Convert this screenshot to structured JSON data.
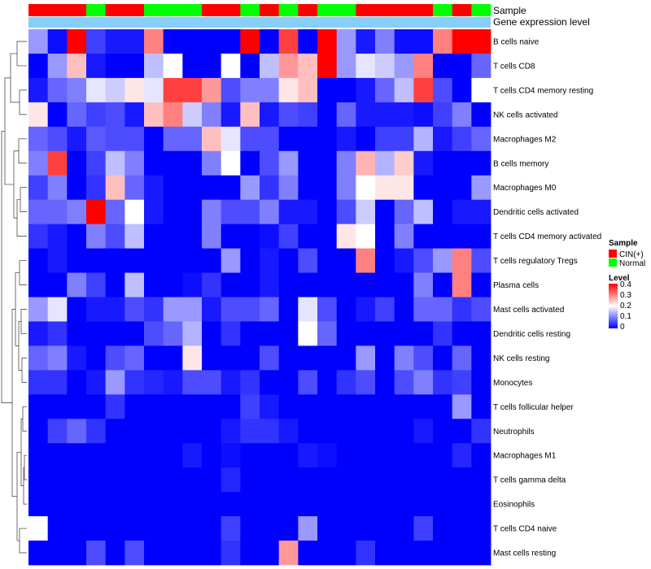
{
  "chart_data": {
    "type": "heatmap",
    "title": "",
    "rows": [
      "B cells naive",
      "T cells CD8",
      "T cells CD4 memory resting",
      "NK cells activated",
      "Macrophages M2",
      "B cells memory",
      "Macrophages M0",
      "Dendritic cells activated",
      "T cells CD4 memory activated",
      "T cells regulatory  Tregs",
      "Plasma cells",
      "Mast cells activated",
      "Dendritic cells resting",
      "NK cells resting",
      "Monocytes",
      "T cells follicular helper",
      "Neutrophils",
      "Macrophages M1",
      "T cells gamma delta",
      "Eosinophils",
      "T cells CD4 naive",
      "Mast cells resting"
    ],
    "n_columns": 24,
    "sample_groups": [
      "CIN(+)",
      "CIN(+)",
      "CIN(+)",
      "Normal",
      "CIN(+)",
      "CIN(+)",
      "Normal",
      "Normal",
      "Normal",
      "CIN(+)",
      "CIN(+)",
      "Normal",
      "CIN(+)",
      "Normal",
      "CIN(+)",
      "Normal",
      "Normal",
      "CIN(+)",
      "CIN(+)",
      "CIN(+)",
      "CIN(+)",
      "Normal",
      "CIN(+)",
      "Normal"
    ],
    "gene_expression_level_color": "#87cefa",
    "values": [
      [
        0.12,
        0.01,
        0.4,
        0.05,
        0.02,
        0.02,
        0.3,
        0.0,
        0.0,
        0.0,
        0.0,
        0.4,
        0.0,
        0.35,
        0.0,
        0.4,
        0.12,
        0.02,
        0.1,
        0.01,
        0.01,
        0.3,
        0.4,
        0.4
      ],
      [
        0.0,
        0.12,
        0.25,
        0.02,
        0.0,
        0.0,
        0.15,
        0.2,
        0.0,
        0.0,
        0.2,
        0.0,
        0.15,
        0.28,
        0.25,
        0.4,
        0.12,
        0.18,
        0.16,
        0.12,
        0.3,
        0.0,
        0.0,
        0.08
      ],
      [
        0.02,
        0.08,
        0.1,
        0.18,
        0.16,
        0.22,
        0.18,
        0.35,
        0.35,
        0.28,
        0.06,
        0.1,
        0.1,
        0.22,
        0.25,
        0.0,
        0.0,
        0.02,
        0.08,
        0.15,
        0.35,
        0.06,
        0.0,
        0.2
      ],
      [
        0.22,
        0.0,
        0.08,
        0.05,
        0.06,
        0.02,
        0.25,
        0.3,
        0.16,
        0.1,
        0.02,
        0.25,
        0.02,
        0.06,
        0.05,
        0.0,
        0.08,
        0.02,
        0.02,
        0.02,
        0.01,
        0.05,
        0.1,
        0.0
      ],
      [
        0.08,
        0.06,
        0.02,
        0.07,
        0.06,
        0.06,
        0.0,
        0.08,
        0.08,
        0.25,
        0.18,
        0.06,
        0.06,
        0.0,
        0.0,
        0.0,
        0.02,
        0.0,
        0.05,
        0.05,
        0.14,
        0.02,
        0.05,
        0.08
      ],
      [
        0.1,
        0.35,
        0.0,
        0.05,
        0.15,
        0.1,
        0.0,
        0.0,
        0.0,
        0.1,
        0.2,
        0.0,
        0.06,
        0.12,
        0.0,
        0.0,
        0.1,
        0.26,
        0.14,
        0.24,
        0.02,
        0.0,
        0.0,
        0.0
      ],
      [
        0.05,
        0.1,
        0.0,
        0.04,
        0.25,
        0.08,
        0.02,
        0.0,
        0.0,
        0.0,
        0.0,
        0.12,
        0.04,
        0.1,
        0.0,
        0.0,
        0.1,
        0.2,
        0.22,
        0.22,
        0.0,
        0.0,
        0.0,
        0.12
      ],
      [
        0.08,
        0.08,
        0.1,
        0.4,
        0.08,
        0.2,
        0.02,
        0.0,
        0.0,
        0.1,
        0.06,
        0.06,
        0.1,
        0.02,
        0.02,
        0.0,
        0.06,
        0.16,
        0.0,
        0.08,
        0.15,
        0.0,
        0.02,
        0.02
      ],
      [
        0.04,
        0.02,
        0.0,
        0.1,
        0.06,
        0.15,
        0.0,
        0.0,
        0.0,
        0.1,
        0.0,
        0.0,
        0.01,
        0.05,
        0.0,
        0.0,
        0.22,
        0.2,
        0.0,
        0.1,
        0.0,
        0.0,
        0.0,
        0.0
      ],
      [
        0.0,
        0.02,
        0.0,
        0.0,
        0.0,
        0.0,
        0.0,
        0.0,
        0.0,
        0.0,
        0.12,
        0.0,
        0.02,
        0.0,
        0.06,
        0.0,
        0.0,
        0.3,
        0.0,
        0.02,
        0.06,
        0.12,
        0.3,
        0.06
      ],
      [
        0.0,
        0.0,
        0.1,
        0.05,
        0.0,
        0.15,
        0.0,
        0.0,
        0.01,
        0.04,
        0.0,
        0.0,
        0.02,
        0.0,
        0.0,
        0.0,
        0.0,
        0.0,
        0.0,
        0.0,
        0.1,
        0.0,
        0.3,
        0.0
      ],
      [
        0.12,
        0.18,
        0.0,
        0.02,
        0.02,
        0.06,
        0.04,
        0.12,
        0.12,
        0.02,
        0.06,
        0.06,
        0.08,
        0.0,
        0.18,
        0.06,
        0.0,
        0.02,
        0.05,
        0.0,
        0.08,
        0.08,
        0.04,
        0.06
      ],
      [
        0.02,
        0.04,
        0.0,
        0.0,
        0.0,
        0.0,
        0.06,
        0.08,
        0.14,
        0.0,
        0.04,
        0.0,
        0.0,
        0.0,
        0.2,
        0.08,
        0.0,
        0.0,
        0.0,
        0.0,
        0.0,
        0.04,
        0.0,
        0.0
      ],
      [
        0.08,
        0.1,
        0.02,
        0.0,
        0.06,
        0.08,
        0.0,
        0.0,
        0.22,
        0.0,
        0.0,
        0.0,
        0.06,
        0.0,
        0.0,
        0.0,
        0.0,
        0.12,
        0.0,
        0.1,
        0.06,
        0.0,
        0.08,
        0.0
      ],
      [
        0.04,
        0.04,
        0.0,
        0.02,
        0.12,
        0.04,
        0.03,
        0.02,
        0.06,
        0.06,
        0.02,
        0.04,
        0.0,
        0.0,
        0.06,
        0.0,
        0.04,
        0.06,
        0.0,
        0.06,
        0.1,
        0.04,
        0.05,
        0.0
      ],
      [
        0.0,
        0.0,
        0.0,
        0.0,
        0.04,
        0.0,
        0.0,
        0.0,
        0.0,
        0.0,
        0.0,
        0.05,
        0.02,
        0.0,
        0.0,
        0.0,
        0.0,
        0.0,
        0.0,
        0.0,
        0.0,
        0.0,
        0.12,
        0.0
      ],
      [
        0.0,
        0.05,
        0.08,
        0.04,
        0.0,
        0.0,
        0.0,
        0.0,
        0.0,
        0.0,
        0.02,
        0.04,
        0.04,
        0.02,
        0.0,
        0.0,
        0.0,
        0.0,
        0.0,
        0.0,
        0.02,
        0.0,
        0.0,
        0.04
      ],
      [
        0.0,
        0.0,
        0.0,
        0.0,
        0.0,
        0.0,
        0.0,
        0.0,
        0.02,
        0.0,
        0.01,
        0.0,
        0.0,
        0.0,
        0.02,
        0.01,
        0.0,
        0.0,
        0.0,
        0.0,
        0.0,
        0.0,
        0.03,
        0.0
      ],
      [
        0.0,
        0.0,
        0.0,
        0.0,
        0.0,
        0.0,
        0.0,
        0.0,
        0.0,
        0.0,
        0.03,
        0.0,
        0.0,
        0.0,
        0.0,
        0.0,
        0.0,
        0.0,
        0.0,
        0.0,
        0.0,
        0.0,
        0.0,
        0.0
      ],
      [
        0.0,
        0.0,
        0.0,
        0.0,
        0.0,
        0.0,
        0.0,
        0.0,
        0.0,
        0.0,
        0.0,
        0.0,
        0.0,
        0.0,
        0.0,
        0.0,
        0.0,
        0.0,
        0.0,
        0.0,
        0.0,
        0.0,
        0.0,
        0.0
      ],
      [
        0.2,
        0.0,
        0.0,
        0.0,
        0.0,
        0.0,
        0.0,
        0.0,
        0.0,
        0.0,
        0.05,
        0.0,
        0.0,
        0.0,
        0.12,
        0.0,
        0.0,
        0.0,
        0.0,
        0.0,
        0.05,
        0.0,
        0.0,
        0.0
      ],
      [
        0.0,
        0.0,
        0.0,
        0.06,
        0.0,
        0.06,
        0.0,
        0.0,
        0.0,
        0.0,
        0.04,
        0.0,
        0.0,
        0.28,
        0.0,
        0.0,
        0.0,
        0.04,
        0.0,
        0.0,
        0.0,
        0.0,
        0.0,
        0.0
      ]
    ],
    "color_scale": {
      "min": 0,
      "max": 0.4,
      "colors": [
        "#0000ff",
        "#ffffff",
        "#ff0000"
      ]
    },
    "annotation_labels": [
      "Sample",
      "Gene expression level"
    ],
    "legend": {
      "sample": {
        "title": "Sample",
        "entries": [
          {
            "label": "CIN(+)",
            "color": "#ff0000"
          },
          {
            "label": "Normal",
            "color": "#00ff00"
          }
        ]
      },
      "level": {
        "title": "Level",
        "ticks": [
          "0.4",
          "0.3",
          "0.2",
          "0.1",
          "0"
        ]
      }
    },
    "legend_position": "right"
  }
}
